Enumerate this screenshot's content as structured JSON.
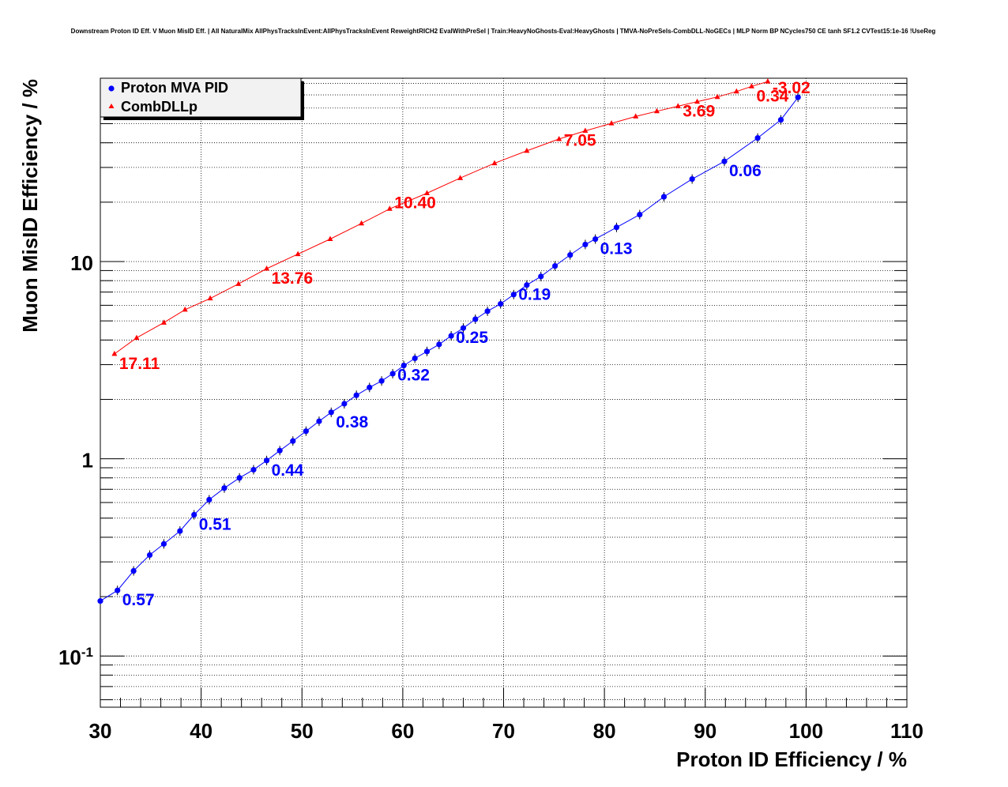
{
  "chart_data": {
    "type": "scatter",
    "title": "Downstream Proton ID Eff. V Muon MisID Eff. | All NaturalMix AllPhysTracksInEvent:AllPhysTracksInEvent ReweightRICH2 EvalWithPreSel | Train:HeavyNoGhosts-Eval:HeavyGhosts | TMVA-NoPreSels-CombDLL-NoGECs | MLP Norm BP NCycles750 CE tanh SF1.2 CVTest15:1e-16 !UseReg",
    "xlabel": "Proton ID Efficiency / %",
    "ylabel": "Muon MisID Efficiency / %",
    "xlim": [
      30,
      110
    ],
    "ylim": [
      0.055,
      85
    ],
    "y_scale": "log",
    "grid": true,
    "legend_position": "top-left",
    "x_ticks": [
      {
        "value": 30,
        "label": "30"
      },
      {
        "value": 40,
        "label": "40"
      },
      {
        "value": 50,
        "label": "50"
      },
      {
        "value": 60,
        "label": "60"
      },
      {
        "value": 70,
        "label": "70"
      },
      {
        "value": 80,
        "label": "80"
      },
      {
        "value": 90,
        "label": "90"
      },
      {
        "value": 100,
        "label": "100"
      },
      {
        "value": 110,
        "label": "110"
      }
    ],
    "y_ticks": [
      {
        "value": 0.1,
        "base": "10",
        "exp": "-1"
      },
      {
        "value": 1,
        "base": "1",
        "exp": ""
      },
      {
        "value": 10,
        "base": "10",
        "exp": ""
      }
    ],
    "series": [
      {
        "name": "Proton MVA PID",
        "color": "#0000ff",
        "marker": "circle",
        "x": [
          30.0,
          31.7,
          33.3,
          34.9,
          36.3,
          37.9,
          39.3,
          40.8,
          42.3,
          43.8,
          45.2,
          46.5,
          47.8,
          49.1,
          50.4,
          51.7,
          52.9,
          54.2,
          55.4,
          56.7,
          57.9,
          59.0,
          60.1,
          61.2,
          62.4,
          63.6,
          64.8,
          66.0,
          67.2,
          68.4,
          69.7,
          71.0,
          72.3,
          73.7,
          75.1,
          76.6,
          78.1,
          79.1,
          81.2,
          83.5,
          85.9,
          88.7,
          91.9,
          95.2,
          97.5,
          99.2
        ],
        "y": [
          0.19,
          0.215,
          0.27,
          0.325,
          0.37,
          0.43,
          0.52,
          0.62,
          0.71,
          0.8,
          0.88,
          0.98,
          1.1,
          1.23,
          1.38,
          1.55,
          1.72,
          1.9,
          2.1,
          2.3,
          2.48,
          2.7,
          2.97,
          3.23,
          3.5,
          3.8,
          4.2,
          4.6,
          5.1,
          5.6,
          6.1,
          6.8,
          7.6,
          8.4,
          9.5,
          10.8,
          12.2,
          13.0,
          14.9,
          17.3,
          21.3,
          26.2,
          32.2,
          42.3,
          52.3,
          68.0
        ],
        "annotations": [
          {
            "x": 31.7,
            "y": 0.215,
            "text": "0.57"
          },
          {
            "x": 39.3,
            "y": 0.52,
            "text": "0.51"
          },
          {
            "x": 46.5,
            "y": 0.98,
            "text": "0.44"
          },
          {
            "x": 52.9,
            "y": 1.72,
            "text": "0.38"
          },
          {
            "x": 59.0,
            "y": 2.97,
            "text": "0.32"
          },
          {
            "x": 64.8,
            "y": 4.6,
            "text": "0.25"
          },
          {
            "x": 71.0,
            "y": 7.6,
            "text": "0.19"
          },
          {
            "x": 79.1,
            "y": 13.0,
            "text": "0.13"
          },
          {
            "x": 91.9,
            "y": 32.2,
            "text": "0.06"
          }
        ]
      },
      {
        "name": "CombDLLp",
        "color": "#ff0000",
        "marker": "triangle",
        "x": [
          31.4,
          33.6,
          36.3,
          38.4,
          40.9,
          43.7,
          46.5,
          49.6,
          52.8,
          55.9,
          58.7,
          62.4,
          65.7,
          69.1,
          72.3,
          75.5,
          78.1,
          80.7,
          83.1,
          85.2,
          87.3,
          89.2,
          91.2,
          93.1,
          94.6,
          96.2
        ],
        "y": [
          3.4,
          4.1,
          4.9,
          5.7,
          6.5,
          7.7,
          9.2,
          10.9,
          13.0,
          15.6,
          18.5,
          22.2,
          26.5,
          31.5,
          36.4,
          41.8,
          46.0,
          50.2,
          54.4,
          57.8,
          61.3,
          64.6,
          68.3,
          72.8,
          77.3,
          81.8
        ],
        "annotations": [
          {
            "x": 31.4,
            "y": 3.4,
            "text": "17.11"
          },
          {
            "x": 46.5,
            "y": 9.2,
            "text": "13.76"
          },
          {
            "x": 58.7,
            "y": 22.2,
            "text": "10.40"
          },
          {
            "x": 75.5,
            "y": 46.0,
            "text": "7.05"
          },
          {
            "x": 87.3,
            "y": 64.6,
            "text": "3.69"
          },
          {
            "x": 94.6,
            "y": 77.3,
            "text": "0.34"
          },
          {
            "x": 96.2,
            "y": 85.0,
            "text": "-3.02"
          }
        ]
      }
    ]
  }
}
